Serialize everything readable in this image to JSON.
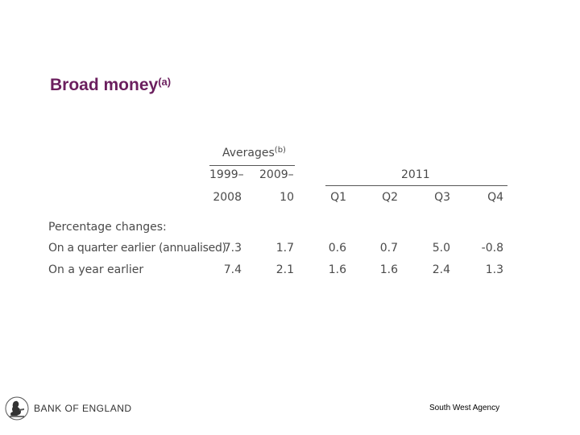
{
  "title": {
    "text": "Broad money",
    "superscript": "(a)"
  },
  "table": {
    "averages_label": "Averages",
    "averages_superscript": "(b)",
    "year_group": "2011",
    "columns": [
      {
        "top": "1999–",
        "bottom": "2008"
      },
      {
        "top": "2009–",
        "bottom": "10"
      },
      {
        "top": "",
        "bottom": "Q1"
      },
      {
        "top": "",
        "bottom": "Q2"
      },
      {
        "top": "",
        "bottom": "Q3"
      },
      {
        "top": "",
        "bottom": "Q4"
      }
    ],
    "section_label": "Percentage changes:",
    "rows": [
      {
        "label": "On a quarter earlier (annualised)",
        "values": [
          "7.3",
          "1.7",
          "0.6",
          "0.7",
          "5.0",
          "-0.8"
        ]
      },
      {
        "label": "On a year earlier",
        "values": [
          "7.4",
          "2.1",
          "1.6",
          "1.6",
          "2.4",
          "1.3"
        ]
      }
    ]
  },
  "footer": {
    "brand": "BANK OF ENGLAND",
    "agency": "South West Agency",
    "logo_icon": "britannia-crest-icon"
  }
}
